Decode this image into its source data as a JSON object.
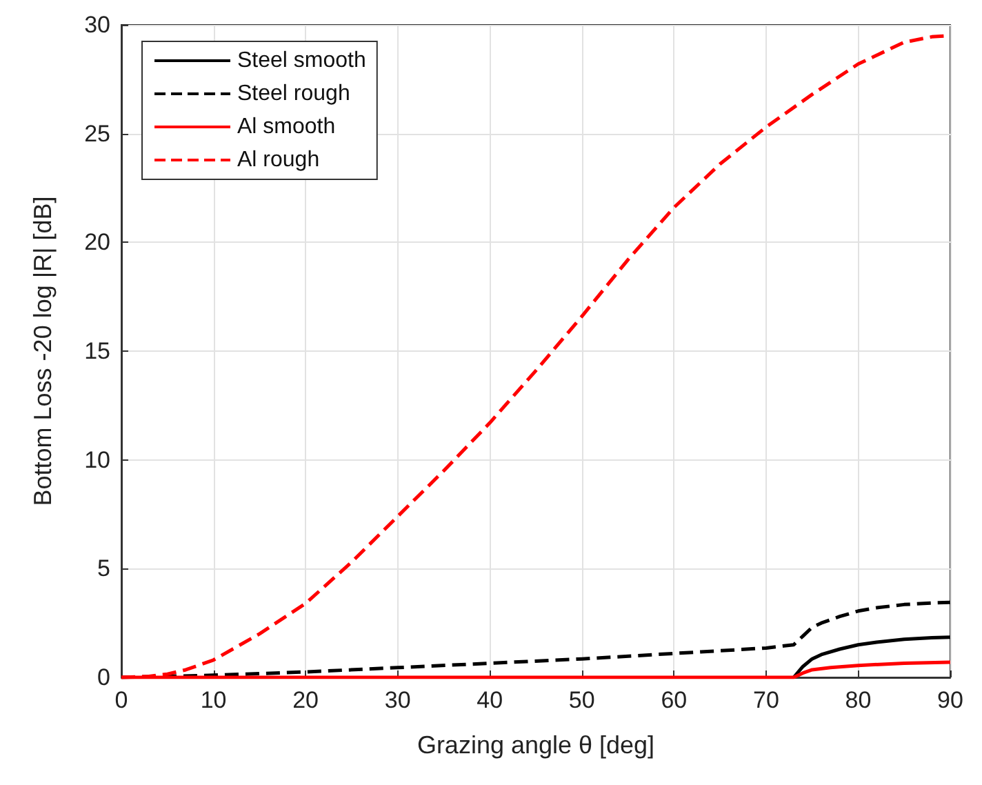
{
  "chart_data": {
    "type": "line",
    "xlabel": "Grazing angle θ [deg]",
    "ylabel": "Bottom Loss -20 log |R| [dB]",
    "xlim": [
      0,
      90
    ],
    "xticks": [
      0,
      10,
      20,
      30,
      40,
      50,
      60,
      70,
      80,
      90
    ],
    "ylim": [
      0,
      30
    ],
    "yticks": [
      0,
      5,
      10,
      15,
      20,
      25,
      30
    ],
    "grid": true,
    "legend": "top left",
    "marker": "none",
    "series": [
      {
        "name": "Steel smooth",
        "color": "#000000",
        "line_style": "solid",
        "x": [
          73,
          74,
          75,
          76,
          78,
          80,
          82,
          85,
          88,
          90
        ],
        "values": [
          0,
          0.5,
          0.85,
          1.05,
          1.3,
          1.5,
          1.62,
          1.75,
          1.82,
          1.85
        ]
      },
      {
        "name": "Steel rough",
        "color": "#000000",
        "line_style": "dashed",
        "x": [
          0,
          10,
          20,
          30,
          40,
          50,
          60,
          70,
          73,
          74,
          75,
          76,
          78,
          80,
          82,
          85,
          88,
          90
        ],
        "values": [
          0,
          0.1,
          0.25,
          0.45,
          0.65,
          0.85,
          1.1,
          1.35,
          1.5,
          1.9,
          2.3,
          2.5,
          2.8,
          3.05,
          3.2,
          3.35,
          3.42,
          3.45
        ]
      },
      {
        "name": "Al smooth",
        "color": "#ff0000",
        "line_style": "solid",
        "x": [
          0,
          73,
          74,
          75,
          77,
          80,
          85,
          90
        ],
        "values": [
          0,
          0,
          0.2,
          0.35,
          0.45,
          0.55,
          0.65,
          0.7
        ]
      },
      {
        "name": "Al rough",
        "color": "#ff0000",
        "line_style": "dashed",
        "x": [
          0,
          3,
          5,
          7,
          10,
          15,
          20,
          25,
          30,
          35,
          40,
          45,
          50,
          55,
          60,
          65,
          70,
          75,
          80,
          85,
          88,
          90
        ],
        "values": [
          0,
          0.05,
          0.15,
          0.35,
          0.8,
          2,
          3.4,
          5.3,
          7.4,
          9.5,
          11.7,
          14.1,
          16.6,
          19.2,
          21.6,
          23.6,
          25.3,
          26.8,
          28.2,
          29.2,
          29.45,
          29.5
        ]
      }
    ]
  }
}
